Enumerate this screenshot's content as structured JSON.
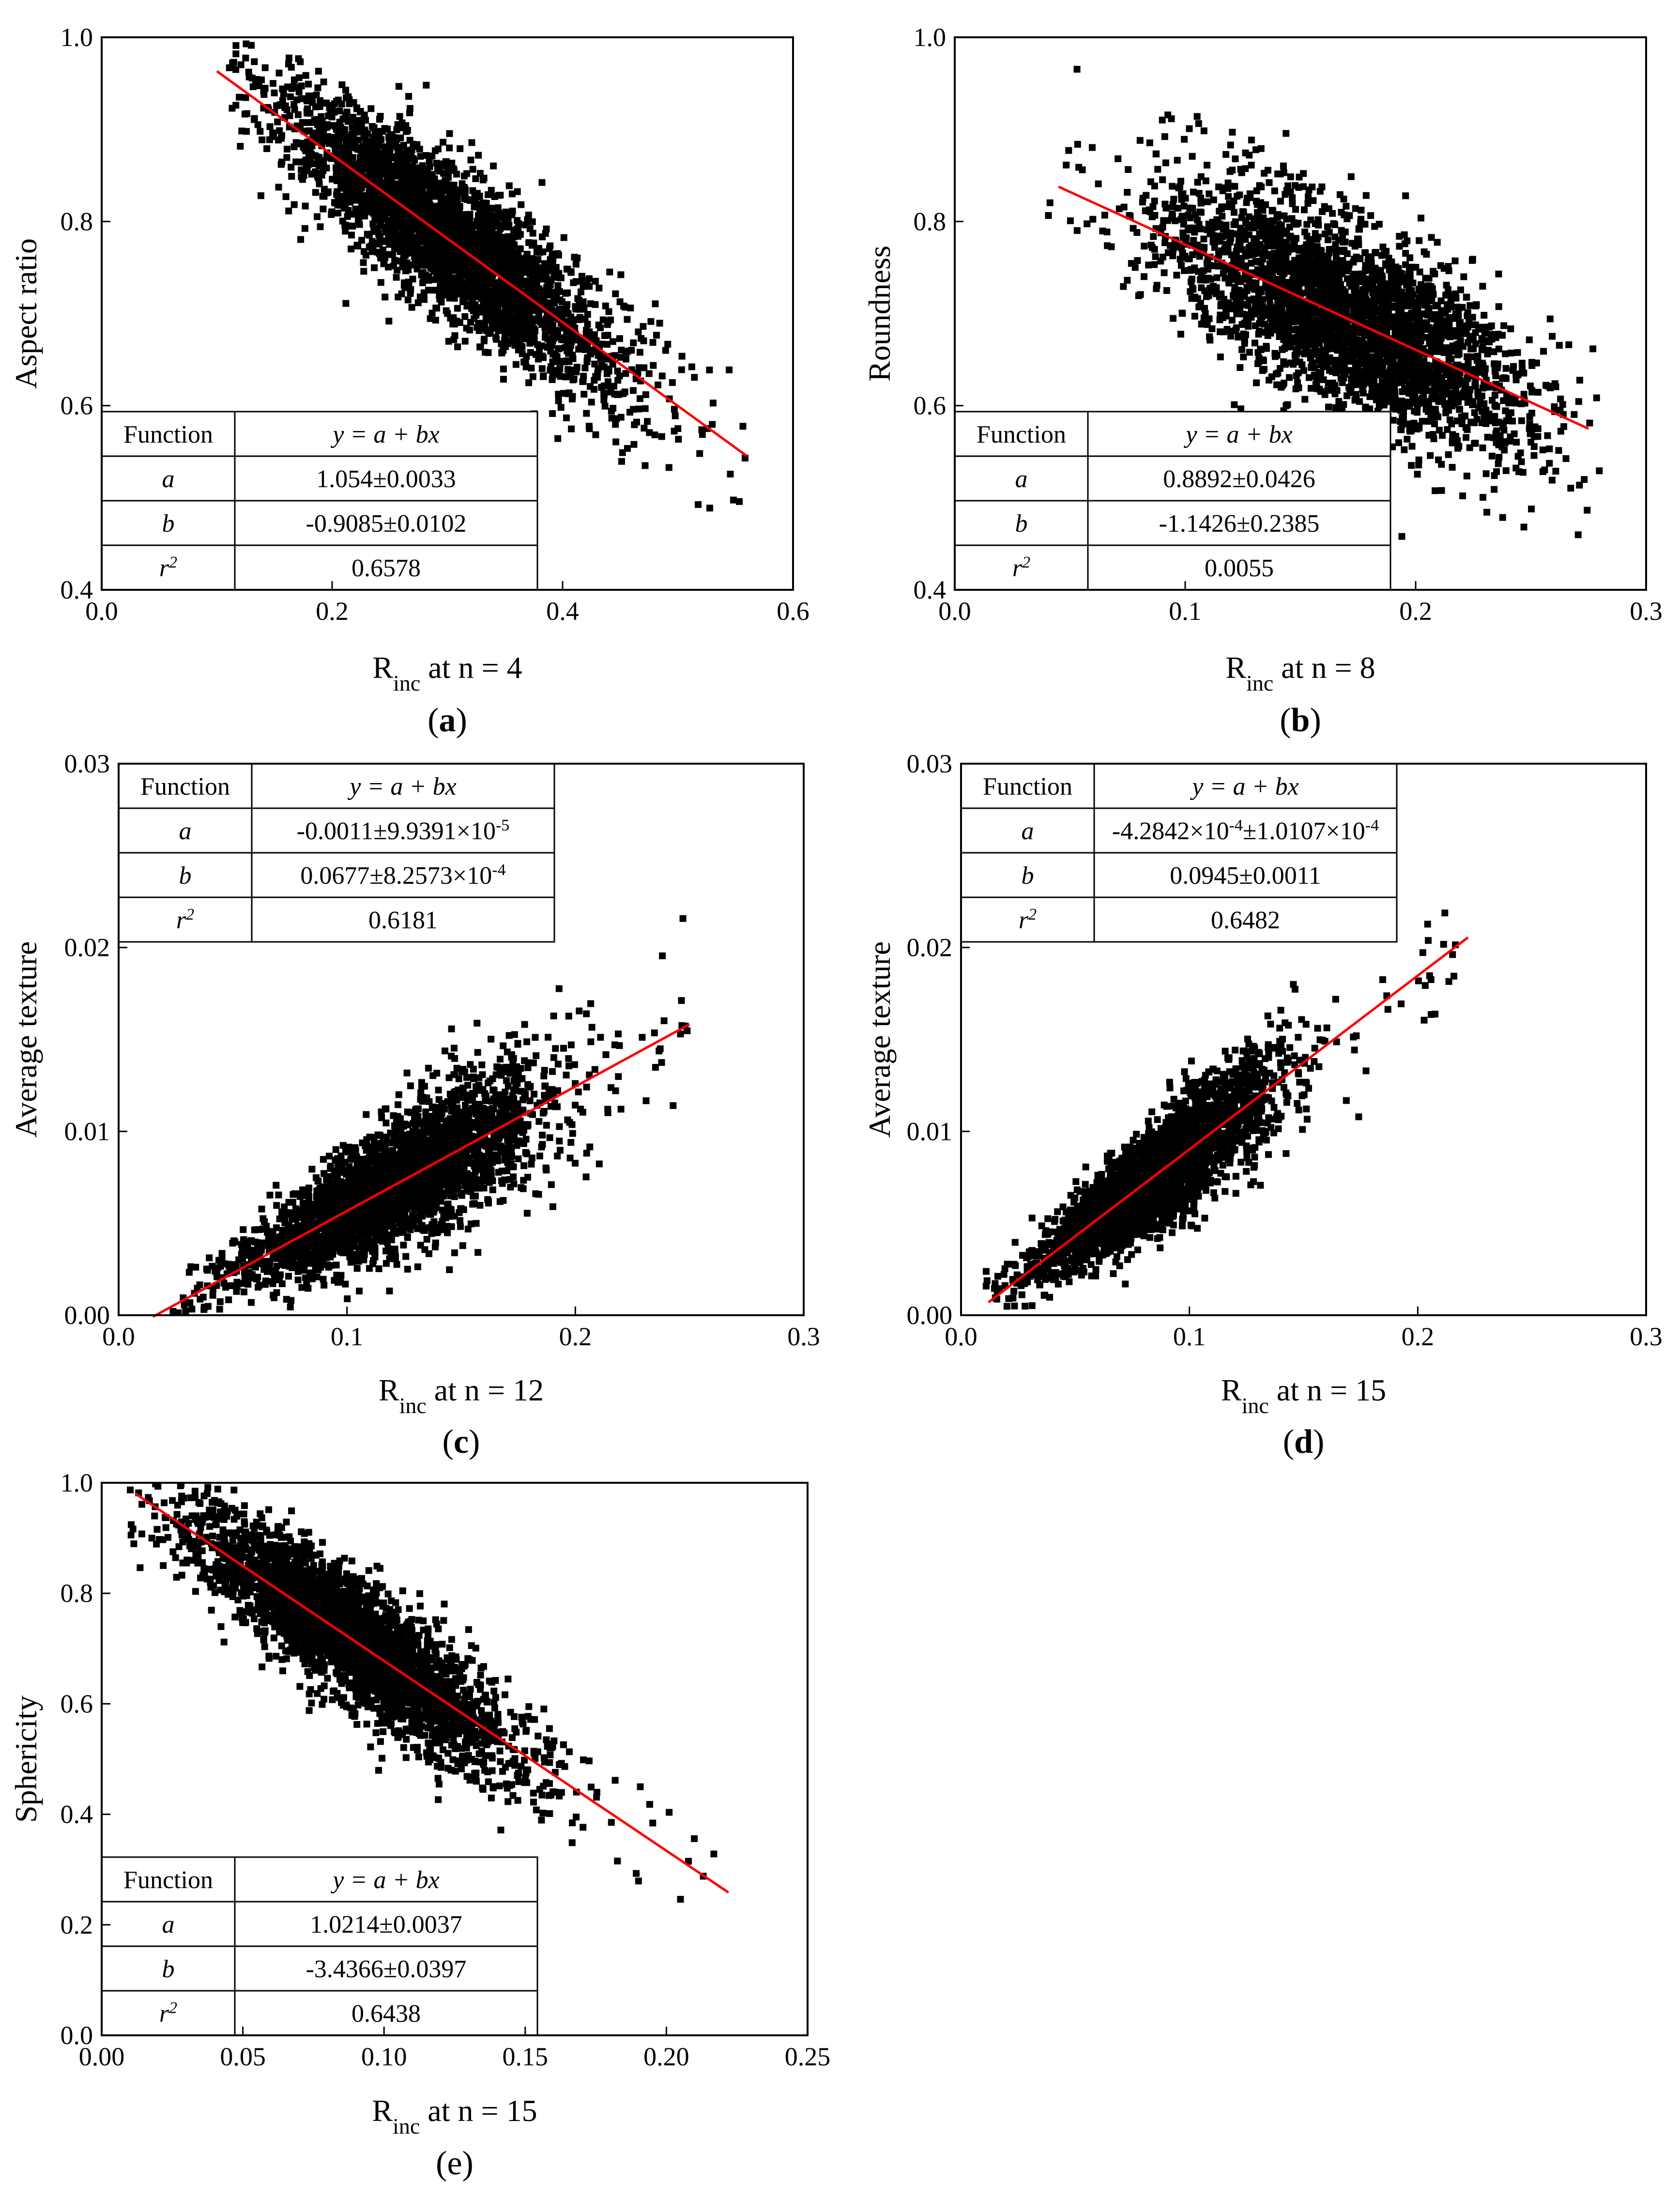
{
  "chart_data": [
    {
      "panel": "a",
      "bold_letter": true,
      "type": "scatter",
      "xlabel": "R",
      "xlabel_sub": "inc",
      "xlabel_suffix": " at n = 4",
      "ylabel": "Aspect ratio",
      "xlim": [
        0.0,
        0.6
      ],
      "ylim": [
        0.4,
        1.0
      ],
      "xticks": [
        0.0,
        0.2,
        0.4,
        0.6
      ],
      "xtick_labels": [
        "0.0",
        "0.2",
        "0.4",
        "0.6"
      ],
      "yticks": [
        0.4,
        0.6,
        0.8,
        1.0
      ],
      "ytick_labels": [
        "0.4",
        "0.6",
        "0.8",
        "1.0"
      ],
      "fit": {
        "a": 1.054,
        "b": -0.9085,
        "x_range": [
          0.1,
          0.56
        ]
      },
      "cloud": {
        "n": 3200,
        "x_mean": 0.3,
        "x_sd": 0.07,
        "noise_sd": 0.04,
        "x_min": 0.1,
        "x_max": 0.56,
        "seed": 11
      },
      "legend_table": {
        "position": "bottom-left",
        "header": [
          "Function",
          "y = a + bx"
        ],
        "rows": [
          [
            "a",
            "1.054±0.0033"
          ],
          [
            "b",
            "-0.9085±0.0102"
          ],
          [
            "r2",
            "0.6578"
          ]
        ]
      }
    },
    {
      "panel": "b",
      "bold_letter": true,
      "type": "scatter",
      "xlabel": "R",
      "xlabel_sub": "inc",
      "xlabel_suffix": " at n = 8",
      "ylabel": "Roundness",
      "xlim": [
        0.0,
        0.3
      ],
      "ylim": [
        0.4,
        1.0
      ],
      "xticks": [
        0.0,
        0.1,
        0.2,
        0.3
      ],
      "xtick_labels": [
        "0.0",
        "0.1",
        "0.2",
        "0.3"
      ],
      "yticks": [
        0.4,
        0.6,
        0.8,
        1.0
      ],
      "ytick_labels": [
        "0.4",
        "0.6",
        "0.8",
        "1.0"
      ],
      "fit": {
        "a": 0.8892,
        "b": -1.1426,
        "x_range": [
          0.045,
          0.275
        ]
      },
      "cloud": {
        "n": 3200,
        "x_mean": 0.17,
        "x_sd": 0.038,
        "noise_sd": 0.05,
        "x_min": 0.04,
        "x_max": 0.28,
        "seed": 23
      },
      "legend_table": {
        "position": "bottom-left",
        "header": [
          "Function",
          "y = a + bx"
        ],
        "rows": [
          [
            "a",
            "0.8892±0.0426"
          ],
          [
            "b",
            "-1.1426±0.2385"
          ],
          [
            "r2",
            "0.0055"
          ]
        ]
      }
    },
    {
      "panel": "c",
      "bold_letter": true,
      "type": "scatter",
      "xlabel": "R",
      "xlabel_sub": "inc",
      "xlabel_suffix": " at n = 12",
      "ylabel": "Average texture",
      "xlim": [
        0.0,
        0.3
      ],
      "ylim": [
        0.0,
        0.03
      ],
      "xticks": [
        0.0,
        0.1,
        0.2,
        0.3
      ],
      "xtick_labels": [
        "0.0",
        "0.1",
        "0.2",
        "0.3"
      ],
      "yticks": [
        0.0,
        0.01,
        0.02,
        0.03
      ],
      "ytick_labels": [
        "0.00",
        "0.01",
        "0.02",
        "0.03"
      ],
      "fit": {
        "a": -0.0011,
        "b": 0.0677,
        "x_range": [
          0.015,
          0.25
        ]
      },
      "cloud": {
        "n": 3200,
        "x_mean": 0.12,
        "x_sd": 0.032,
        "noise_sd": 0.0014,
        "noise_scale": true,
        "x_min": 0.015,
        "x_max": 0.25,
        "seed": 37
      },
      "legend_table": {
        "position": "top-left",
        "header": [
          "Function",
          "y = a + bx"
        ],
        "rows": [
          [
            "a",
            "-0.0011±9.9391×10-5"
          ],
          [
            "b",
            "0.0677±8.2573×10-4"
          ],
          [
            "r2",
            "0.6181"
          ]
        ]
      }
    },
    {
      "panel": "d",
      "bold_letter": true,
      "type": "scatter",
      "xlabel": "R",
      "xlabel_sub": "inc",
      "xlabel_suffix": " at n = 15",
      "ylabel": "Average texture",
      "xlim": [
        0.0,
        0.3
      ],
      "ylim": [
        0.0,
        0.03
      ],
      "xticks": [
        0.0,
        0.1,
        0.2,
        0.3
      ],
      "xtick_labels": [
        "0.0",
        "0.1",
        "0.2",
        "0.3"
      ],
      "yticks": [
        0.0,
        0.01,
        0.02,
        0.03
      ],
      "ytick_labels": [
        "0.00",
        "0.01",
        "0.02",
        "0.03"
      ],
      "fit": {
        "a": -0.00042842,
        "b": 0.0945,
        "x_range": [
          0.012,
          0.222
        ]
      },
      "cloud": {
        "n": 3200,
        "x_mean": 0.085,
        "x_sd": 0.025,
        "noise_sd": 0.0014,
        "noise_scale": true,
        "x_min": 0.01,
        "x_max": 0.22,
        "seed": 41
      },
      "legend_table": {
        "position": "top-left",
        "header": [
          "Function",
          "y = a + bx"
        ],
        "rows": [
          [
            "a",
            "-4.2842×10-4±1.0107×10-4"
          ],
          [
            "b",
            "0.0945±0.0011"
          ],
          [
            "r2",
            "0.6482"
          ]
        ]
      }
    },
    {
      "panel": "e",
      "bold_letter": false,
      "type": "scatter",
      "xlabel": "R",
      "xlabel_sub": "inc",
      "xlabel_suffix": " at n = 15",
      "ylabel": "Sphericity",
      "xlim": [
        0.0,
        0.25
      ],
      "ylim": [
        0.0,
        1.0
      ],
      "xticks": [
        0.0,
        0.05,
        0.1,
        0.15,
        0.2,
        0.25
      ],
      "xtick_labels": [
        "0.00",
        "0.05",
        "0.10",
        "0.15",
        "0.20",
        "0.25"
      ],
      "yticks": [
        0.0,
        0.2,
        0.4,
        0.6,
        0.8,
        1.0
      ],
      "ytick_labels": [
        "0.0",
        "0.2",
        "0.4",
        "0.6",
        "0.8",
        "1.0"
      ],
      "fit": {
        "a": 1.0214,
        "b": -3.4366,
        "x_range": [
          0.012,
          0.222
        ]
      },
      "cloud": {
        "n": 3200,
        "x_mean": 0.09,
        "x_sd": 0.028,
        "noise_sd": 0.055,
        "x_min": 0.01,
        "x_max": 0.22,
        "seed": 53
      },
      "legend_table": {
        "position": "bottom-left",
        "header": [
          "Function",
          "y = a + bx"
        ],
        "rows": [
          [
            "a",
            "1.0214±0.0037"
          ],
          [
            "b",
            "-3.4366±0.0397"
          ],
          [
            "r2",
            "0.6438"
          ]
        ]
      }
    }
  ],
  "colors": {
    "points": "#000000",
    "fit_line": "#ff0000",
    "axes": "#000000"
  }
}
